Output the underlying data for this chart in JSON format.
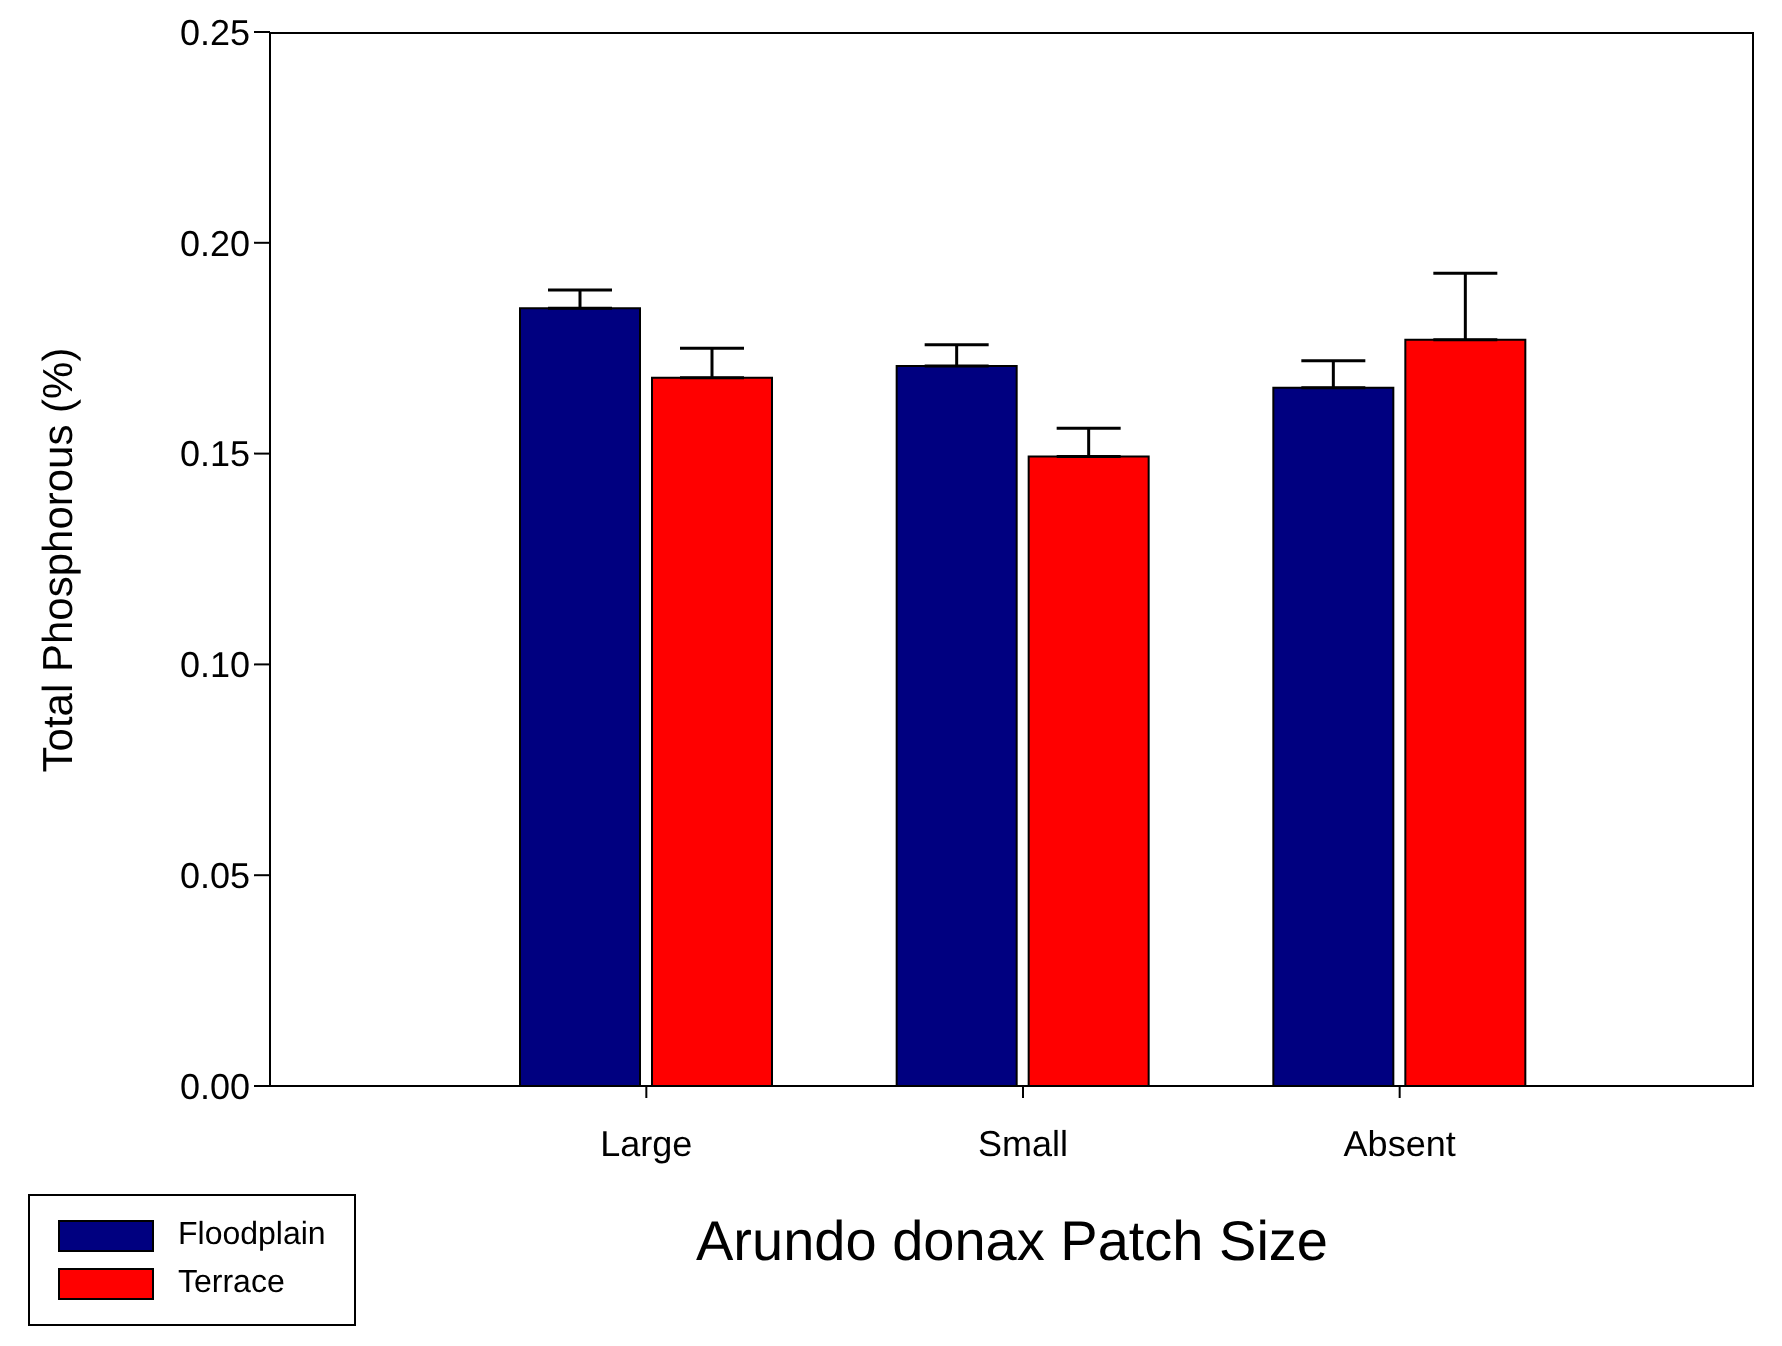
{
  "chart_data": {
    "type": "bar",
    "xlabel": "Arundo donax Patch Size",
    "ylabel": "Total Phosphorous (%)",
    "categories": [
      "Large",
      "Small",
      "Absent"
    ],
    "series": [
      {
        "name": "Floodplain",
        "color": "#000080",
        "values": [
          0.1845,
          0.1708,
          0.1656
        ],
        "errors": [
          0.0043,
          0.005,
          0.0064
        ]
      },
      {
        "name": "Terrace",
        "color": "#ff0000",
        "values": [
          0.168,
          0.1493,
          0.177
        ],
        "errors": [
          0.007,
          0.0067,
          0.0158
        ]
      }
    ],
    "ylim": [
      0,
      0.25
    ],
    "yticks": [
      {
        "value": 0,
        "label": "0.00"
      },
      0.05,
      {
        "value": 0.1,
        "label": "0.10"
      },
      0.15,
      {
        "value": 0.2,
        "label": "0.20"
      },
      0.25
    ],
    "grid": false,
    "legend": "bottom left"
  }
}
